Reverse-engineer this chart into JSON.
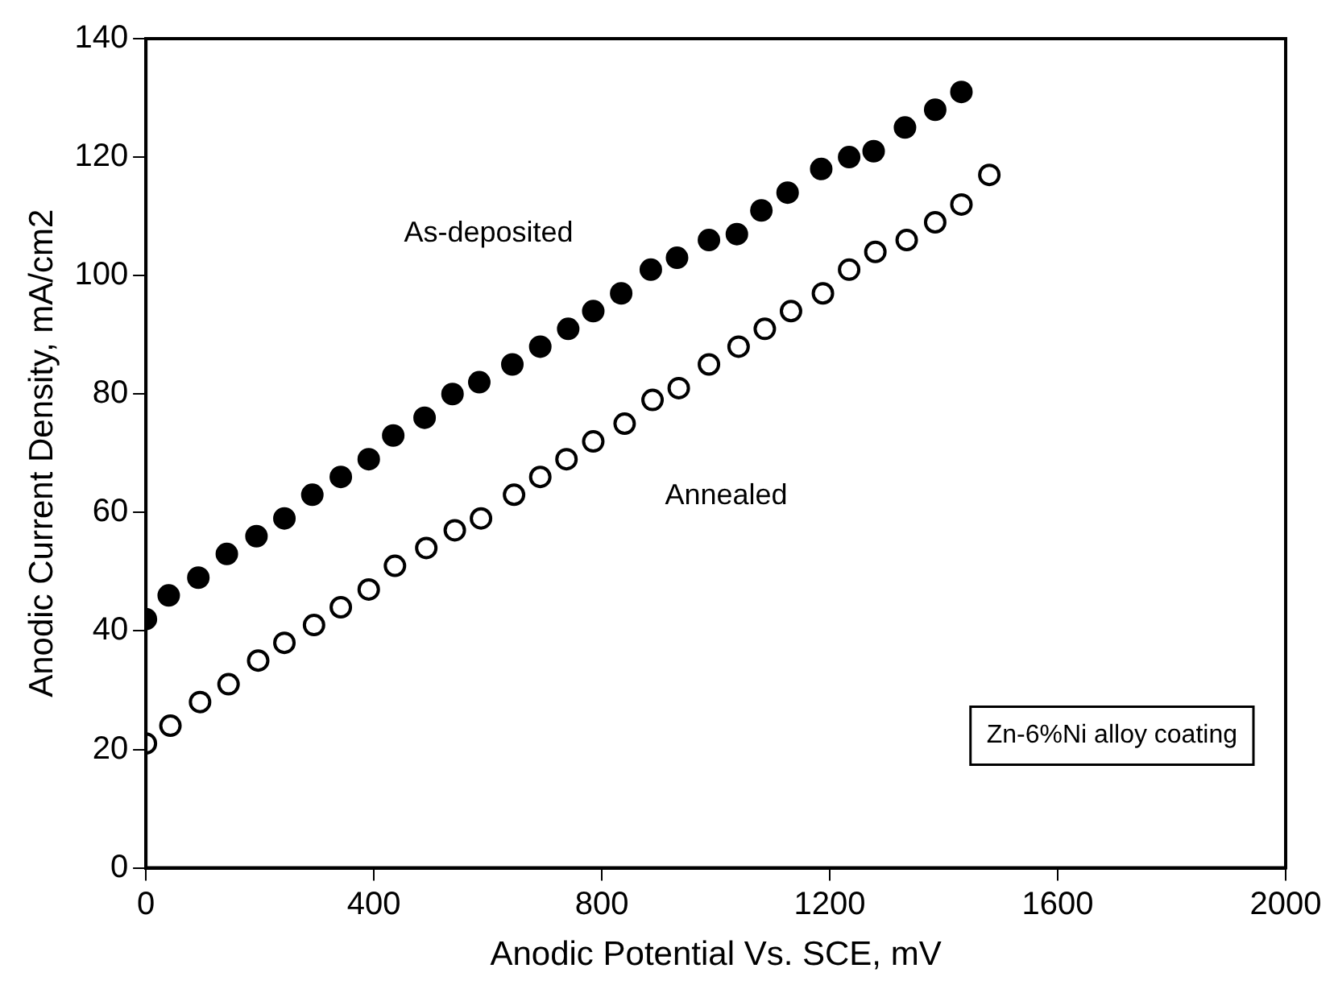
{
  "chart_data": {
    "type": "scatter",
    "xlabel": "Anodic Potential Vs. SCE, mV",
    "ylabel": "Anodic Current Density, mA/cm2",
    "annotations": [
      "Zn-6%Ni alloy coating"
    ],
    "xlim": [
      0,
      2000
    ],
    "xticks": [
      0,
      400,
      800,
      1200,
      1600,
      2000
    ],
    "ylim": [
      0,
      140
    ],
    "yticks": [
      0,
      20,
      40,
      60,
      80,
      100,
      120,
      140
    ],
    "grid": false,
    "legend": false,
    "marker": "circle",
    "series": [
      {
        "name": "As-deposited",
        "color": "#000000",
        "x": [
          0,
          40,
          92,
          142,
          194,
          243,
          292,
          342,
          391,
          434,
          489,
          538,
          585,
          643,
          692,
          741,
          785,
          834,
          886,
          932,
          988,
          1037,
          1080,
          1126,
          1185,
          1234,
          1277,
          1332,
          1385,
          1431
        ],
        "values": [
          42,
          46,
          49,
          53,
          56,
          59,
          63,
          66,
          69,
          73,
          76,
          80,
          82,
          85,
          88,
          91,
          94,
          97,
          101,
          103,
          106,
          107,
          111,
          114,
          118,
          120,
          121,
          125,
          128,
          131
        ]
      },
      {
        "name": "Annealed",
        "color": "#000000",
        "x": [
          0,
          43,
          95,
          145,
          197,
          243,
          295,
          342,
          391,
          437,
          492,
          542,
          588,
          646,
          692,
          738,
          785,
          840,
          889,
          935,
          988,
          1040,
          1086,
          1132,
          1188,
          1234,
          1280,
          1335,
          1385,
          1431,
          1480
        ],
        "values": [
          21,
          24,
          28,
          31,
          35,
          38,
          41,
          44,
          47,
          51,
          54,
          57,
          59,
          63,
          66,
          69,
          72,
          75,
          79,
          81,
          85,
          88,
          91,
          94,
          97,
          101,
          104,
          106,
          109,
          112,
          117
        ]
      }
    ]
  }
}
